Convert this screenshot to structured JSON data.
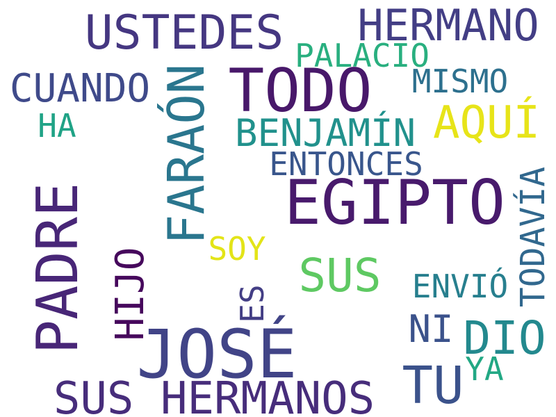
{
  "words": [
    {
      "text": "USTEDES",
      "color": "#453781"
    },
    {
      "text": "HERMANO",
      "color": "#433e85"
    },
    {
      "text": "PALACIO",
      "color": "#29af7f"
    },
    {
      "text": "CUANDO",
      "color": "#3f4a8a"
    },
    {
      "text": "TODO",
      "color": "#48186a"
    },
    {
      "text": "MISMO",
      "color": "#2d708e"
    },
    {
      "text": "HA",
      "color": "#20a386"
    },
    {
      "text": "FARAÓN",
      "color": "#2a768e"
    },
    {
      "text": "AQUÍ",
      "color": "#e7e419"
    },
    {
      "text": "BENJAMÍN",
      "color": "#21918c"
    },
    {
      "text": "ENTONCES",
      "color": "#39568c"
    },
    {
      "text": "EGIPTO",
      "color": "#481a6c"
    },
    {
      "text": "PADRE",
      "color": "#482677"
    },
    {
      "text": "TODAVÍA",
      "color": "#31688e"
    },
    {
      "text": "SOY",
      "color": "#e3e418"
    },
    {
      "text": "SUS",
      "color": "#5ec962"
    },
    {
      "text": "HIJO",
      "color": "#46085c"
    },
    {
      "text": "ENVIÓ",
      "color": "#277f8e"
    },
    {
      "text": "ES",
      "color": "#433e85"
    },
    {
      "text": "NI",
      "color": "#3b528b"
    },
    {
      "text": "DIO",
      "color": "#23898e"
    },
    {
      "text": "JOSÉ",
      "color": "#414487"
    },
    {
      "text": "TU",
      "color": "#3b528b"
    },
    {
      "text": "YA",
      "color": "#22a884"
    },
    {
      "text": "SUS HERMANOS",
      "color": "#472d7b"
    }
  ]
}
